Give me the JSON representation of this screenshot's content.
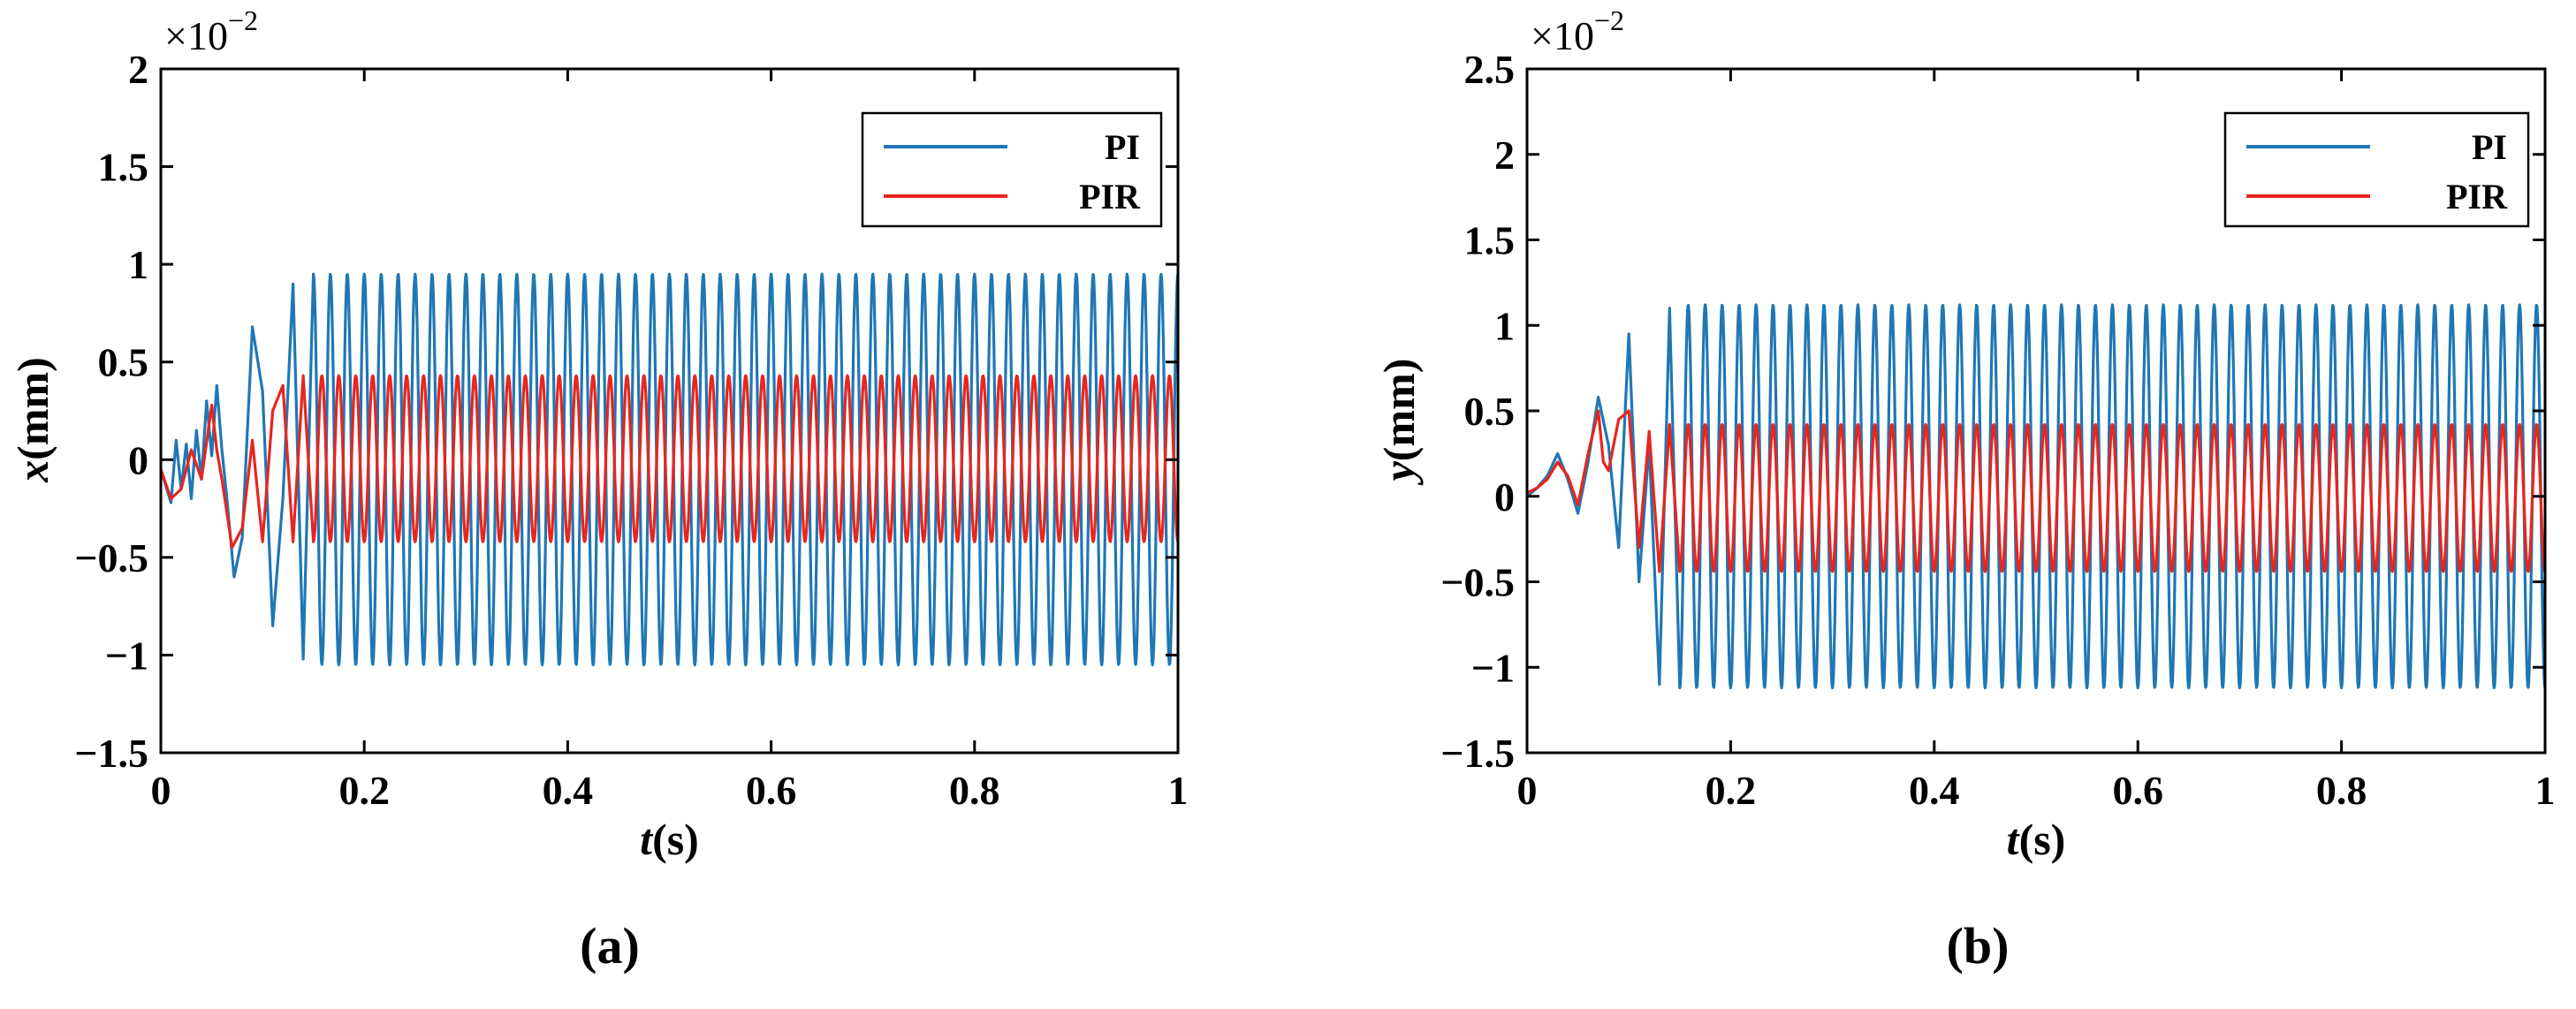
{
  "chart_data": [
    {
      "type": "line",
      "panel": "(a)",
      "xlabel_var": "t",
      "xlabel_unit": "(s)",
      "ylabel_var": "x",
      "ylabel_unit": "(mm)",
      "y_multiplier": "×10",
      "y_multiplier_exp": "−2",
      "xlim": [
        0,
        1
      ],
      "ylim": [
        -1.5,
        2
      ],
      "xticks": [
        0,
        0.2,
        0.4,
        0.6,
        0.8,
        1
      ],
      "xtick_labels": [
        "0",
        "0.2",
        "0.4",
        "0.6",
        "0.8",
        "1"
      ],
      "yticks": [
        -1.5,
        -1,
        -0.5,
        0,
        0.5,
        1,
        1.5,
        2
      ],
      "ytick_labels": [
        "−1.5",
        "−1",
        "−0.5",
        "0",
        "0.5",
        "1",
        "1.5",
        "2"
      ],
      "legend_position": "top-right",
      "series": [
        {
          "name": "PI",
          "color": "#1f77b4",
          "description": "transient then sustained oscillation",
          "oscillation_freq_hz": 60,
          "steady_upper": 0.95,
          "steady_lower": -1.05,
          "steady_start_s": 0.15,
          "transient": [
            [
              0,
              -0.05
            ],
            [
              0.01,
              -0.22
            ],
            [
              0.015,
              0.1
            ],
            [
              0.02,
              -0.15
            ],
            [
              0.025,
              0.08
            ],
            [
              0.03,
              -0.2
            ],
            [
              0.035,
              0.15
            ],
            [
              0.04,
              -0.1
            ],
            [
              0.045,
              0.3
            ],
            [
              0.05,
              0.02
            ],
            [
              0.055,
              0.38
            ],
            [
              0.06,
              0.05
            ],
            [
              0.065,
              -0.2
            ],
            [
              0.072,
              -0.6
            ],
            [
              0.08,
              -0.4
            ],
            [
              0.09,
              0.68
            ],
            [
              0.1,
              0.35
            ],
            [
              0.11,
              -0.85
            ],
            [
              0.12,
              -0.2
            ],
            [
              0.13,
              0.9
            ],
            [
              0.14,
              -1.02
            ],
            [
              0.15,
              0.95
            ]
          ]
        },
        {
          "name": "PIR",
          "color": "#e8251f",
          "description": "transient then smaller sustained oscillation",
          "oscillation_freq_hz": 60,
          "steady_upper": 0.43,
          "steady_lower": -0.42,
          "steady_start_s": 0.15,
          "transient": [
            [
              0,
              -0.05
            ],
            [
              0.01,
              -0.2
            ],
            [
              0.02,
              -0.15
            ],
            [
              0.03,
              0.05
            ],
            [
              0.04,
              -0.1
            ],
            [
              0.05,
              0.28
            ],
            [
              0.055,
              0.05
            ],
            [
              0.06,
              -0.1
            ],
            [
              0.07,
              -0.45
            ],
            [
              0.08,
              -0.35
            ],
            [
              0.09,
              0.1
            ],
            [
              0.1,
              -0.42
            ],
            [
              0.11,
              0.25
            ],
            [
              0.12,
              0.38
            ],
            [
              0.13,
              -0.42
            ],
            [
              0.14,
              0.43
            ],
            [
              0.15,
              -0.42
            ]
          ]
        }
      ]
    },
    {
      "type": "line",
      "panel": "(b)",
      "xlabel_var": "t",
      "xlabel_unit": "(s)",
      "ylabel_var": "y",
      "ylabel_unit": "(mm)",
      "y_multiplier": "×10",
      "y_multiplier_exp": "−2",
      "xlim": [
        0,
        1
      ],
      "ylim": [
        -1.5,
        2.5
      ],
      "xticks": [
        0,
        0.2,
        0.4,
        0.6,
        0.8,
        1
      ],
      "xtick_labels": [
        "0",
        "0.2",
        "0.4",
        "0.6",
        "0.8",
        "1"
      ],
      "yticks": [
        -1.5,
        -1,
        -0.5,
        0,
        0.5,
        1,
        1.5,
        2,
        2.5
      ],
      "ytick_labels": [
        "−1.5",
        "−1",
        "−0.5",
        "0",
        "0.5",
        "1",
        "1.5",
        "2",
        "2.5"
      ],
      "legend_position": "top-right",
      "series": [
        {
          "name": "PI",
          "color": "#1f77b4",
          "description": "transient then sustained oscillation",
          "oscillation_freq_hz": 60,
          "steady_upper": 1.12,
          "steady_lower": -1.12,
          "steady_start_s": 0.15,
          "transient": [
            [
              0,
              0
            ],
            [
              0.01,
              0.05
            ],
            [
              0.02,
              0.12
            ],
            [
              0.03,
              0.25
            ],
            [
              0.04,
              0.1
            ],
            [
              0.05,
              -0.1
            ],
            [
              0.06,
              0.2
            ],
            [
              0.07,
              0.58
            ],
            [
              0.08,
              0.3
            ],
            [
              0.09,
              -0.3
            ],
            [
              0.1,
              0.95
            ],
            [
              0.11,
              -0.5
            ],
            [
              0.12,
              0.3
            ],
            [
              0.13,
              -1.1
            ],
            [
              0.14,
              1.1
            ],
            [
              0.15,
              -1.12
            ]
          ]
        },
        {
          "name": "PIR",
          "color": "#e8251f",
          "description": "transient then smaller sustained oscillation",
          "oscillation_freq_hz": 60,
          "steady_upper": 0.42,
          "steady_lower": -0.44,
          "steady_start_s": 0.15,
          "transient": [
            [
              0,
              0.02
            ],
            [
              0.01,
              0.05
            ],
            [
              0.02,
              0.1
            ],
            [
              0.03,
              0.2
            ],
            [
              0.04,
              0.12
            ],
            [
              0.05,
              -0.05
            ],
            [
              0.06,
              0.25
            ],
            [
              0.07,
              0.5
            ],
            [
              0.075,
              0.2
            ],
            [
              0.08,
              0.15
            ],
            [
              0.09,
              0.45
            ],
            [
              0.1,
              0.5
            ],
            [
              0.11,
              -0.3
            ],
            [
              0.12,
              0.38
            ],
            [
              0.13,
              -0.44
            ],
            [
              0.14,
              0.42
            ],
            [
              0.15,
              -0.44
            ]
          ]
        }
      ]
    }
  ]
}
